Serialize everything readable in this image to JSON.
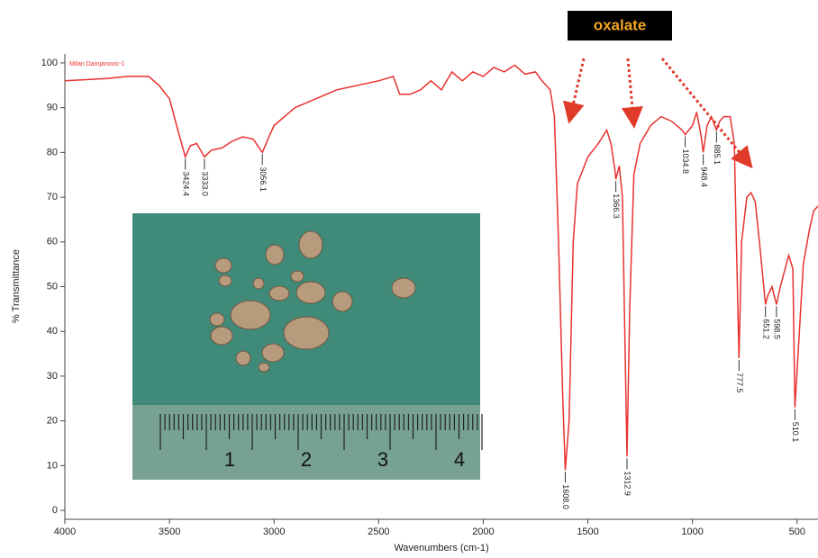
{
  "chart_data": {
    "type": "line",
    "series_label": "Milan Damjanovic-1",
    "xlabel": "Wavenumbers (cm-1)",
    "ylabel": "% Transmittance",
    "annotation": "oxalate",
    "xlim": [
      4000,
      400
    ],
    "ylim": [
      -2,
      102
    ],
    "xticks": [
      4000,
      3500,
      3000,
      2500,
      2000,
      1500,
      1000,
      500
    ],
    "yticks": [
      0,
      10,
      20,
      30,
      40,
      50,
      60,
      70,
      80,
      90,
      100
    ],
    "color": "#e8322f",
    "x": [
      4000,
      3800,
      3700,
      3600,
      3550,
      3500,
      3460,
      3424.4,
      3400,
      3370,
      3333,
      3300,
      3250,
      3200,
      3150,
      3100,
      3056.1,
      3020,
      3000,
      2900,
      2800,
      2700,
      2600,
      2500,
      2430,
      2400,
      2350,
      2300,
      2250,
      2200,
      2150,
      2100,
      2050,
      2000,
      1950,
      1900,
      1850,
      1800,
      1750,
      1720,
      1700,
      1680,
      1660,
      1640,
      1620,
      1608,
      1590,
      1570,
      1550,
      1500,
      1450,
      1410,
      1390,
      1370,
      1366.3,
      1350,
      1335,
      1320,
      1312.9,
      1300,
      1280,
      1250,
      1200,
      1150,
      1100,
      1050,
      1034.8,
      1000,
      980,
      960,
      948.4,
      930,
      910,
      885.1,
      870,
      850,
      820,
      800,
      790,
      777.5,
      765,
      740,
      720,
      700,
      680,
      651.2,
      640,
      620,
      598.5,
      580,
      540,
      520,
      510.1,
      495,
      470,
      440,
      420,
      400
    ],
    "values": [
      96,
      96.5,
      97,
      97,
      95,
      92,
      85,
      79,
      81.5,
      82,
      79,
      80.5,
      81,
      82.5,
      83.5,
      83,
      80,
      84,
      86,
      90,
      92,
      94,
      95,
      96,
      97,
      93,
      93,
      94,
      96,
      94,
      98,
      96,
      98,
      97,
      99,
      98,
      99.5,
      97.5,
      98,
      96,
      95,
      94,
      88,
      60,
      25,
      9,
      20,
      60,
      73,
      79,
      82,
      85,
      82,
      76,
      74,
      77,
      70,
      30,
      12,
      45,
      75,
      82,
      86,
      88,
      87,
      85,
      84,
      86,
      89,
      84,
      80,
      86,
      88,
      85,
      87,
      88,
      88,
      82,
      60,
      34,
      60,
      70,
      71,
      69,
      60,
      46,
      48,
      50,
      46,
      50,
      57,
      54,
      23,
      35,
      55,
      63,
      67,
      68
    ],
    "peaks": [
      {
        "x": 3424.4,
        "y": 79,
        "label": "3424.4"
      },
      {
        "x": 3333.0,
        "y": 79,
        "label": "3333.0"
      },
      {
        "x": 3056.1,
        "y": 80,
        "label": "3056.1"
      },
      {
        "x": 1608.0,
        "y": 9,
        "label": "1608.0"
      },
      {
        "x": 1366.3,
        "y": 74,
        "label": "1366.3"
      },
      {
        "x": 1312.9,
        "y": 12,
        "label": "1312.9"
      },
      {
        "x": 1034.8,
        "y": 84,
        "label": "1034.8"
      },
      {
        "x": 948.4,
        "y": 80,
        "label": "948.4"
      },
      {
        "x": 885.1,
        "y": 85,
        "label": "885.1"
      },
      {
        "x": 777.5,
        "y": 34,
        "label": "777.5"
      },
      {
        "x": 651.2,
        "y": 46,
        "label": "651.2"
      },
      {
        "x": 598.5,
        "y": 46,
        "label": "598.5"
      },
      {
        "x": 510.1,
        "y": 23,
        "label": "510.1"
      }
    ],
    "inset_ruler_labels": [
      "1",
      "2",
      "3",
      "4"
    ]
  }
}
